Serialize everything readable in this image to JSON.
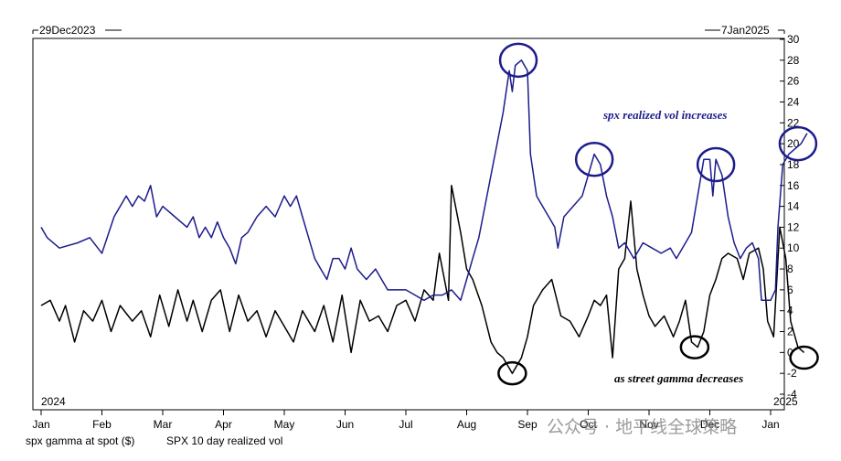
{
  "chart_data": {
    "type": "line",
    "date_range_start": "29Dec2023",
    "date_range_end": "7Jan2025",
    "year_start_label": "2024",
    "year_end_label": "2025",
    "x_month_labels": [
      "Jan",
      "Feb",
      "Mar",
      "Apr",
      "May",
      "Jun",
      "Jul",
      "Aug",
      "Sep",
      "Oct",
      "Nov",
      "Dec",
      "Jan"
    ],
    "y_ticks": [
      -4,
      -2,
      0,
      2,
      4,
      6,
      8,
      10,
      12,
      14,
      16,
      18,
      20,
      22,
      24,
      26,
      28,
      30
    ],
    "ylim": [
      -4,
      30
    ],
    "colors": {
      "gamma": "#000000",
      "vol": "#1c1c8c"
    },
    "series": [
      {
        "name": "spx gamma at spot ($)",
        "color": "#000000",
        "points": [
          [
            0.0,
            4.5
          ],
          [
            0.15,
            5
          ],
          [
            0.3,
            3
          ],
          [
            0.4,
            4.5
          ],
          [
            0.55,
            1
          ],
          [
            0.7,
            4
          ],
          [
            0.85,
            3
          ],
          [
            1.0,
            5
          ],
          [
            1.15,
            2
          ],
          [
            1.3,
            4.5
          ],
          [
            1.5,
            3
          ],
          [
            1.65,
            4
          ],
          [
            1.8,
            1.5
          ],
          [
            1.95,
            5.5
          ],
          [
            2.1,
            2.5
          ],
          [
            2.25,
            6
          ],
          [
            2.4,
            3
          ],
          [
            2.5,
            5
          ],
          [
            2.65,
            2
          ],
          [
            2.8,
            5
          ],
          [
            2.95,
            6
          ],
          [
            3.1,
            2
          ],
          [
            3.25,
            5.5
          ],
          [
            3.4,
            3
          ],
          [
            3.55,
            4
          ],
          [
            3.7,
            1.5
          ],
          [
            3.85,
            4
          ],
          [
            4.0,
            2.5
          ],
          [
            4.15,
            1
          ],
          [
            4.3,
            4
          ],
          [
            4.5,
            2
          ],
          [
            4.65,
            4.5
          ],
          [
            4.8,
            1
          ],
          [
            4.95,
            5.5
          ],
          [
            5.1,
            0
          ],
          [
            5.25,
            5
          ],
          [
            5.4,
            3
          ],
          [
            5.55,
            3.5
          ],
          [
            5.7,
            2
          ],
          [
            5.85,
            4.5
          ],
          [
            6.0,
            5
          ],
          [
            6.15,
            3
          ],
          [
            6.3,
            6
          ],
          [
            6.45,
            5
          ],
          [
            6.55,
            9.5
          ],
          [
            6.7,
            5
          ],
          [
            6.75,
            16
          ],
          [
            6.9,
            11.5
          ],
          [
            7.0,
            8
          ],
          [
            7.1,
            7
          ],
          [
            7.25,
            4.5
          ],
          [
            7.4,
            1
          ],
          [
            7.5,
            0
          ],
          [
            7.6,
            -0.5
          ],
          [
            7.75,
            -2
          ],
          [
            7.9,
            -0.5
          ],
          [
            8.0,
            1.5
          ],
          [
            8.1,
            4.5
          ],
          [
            8.25,
            6
          ],
          [
            8.4,
            7
          ],
          [
            8.55,
            3.5
          ],
          [
            8.7,
            3
          ],
          [
            8.85,
            1.5
          ],
          [
            9.0,
            3.5
          ],
          [
            9.1,
            5
          ],
          [
            9.2,
            4.5
          ],
          [
            9.3,
            5.5
          ],
          [
            9.4,
            -0.5
          ],
          [
            9.5,
            8
          ],
          [
            9.6,
            9
          ],
          [
            9.7,
            14.5
          ],
          [
            9.8,
            8
          ],
          [
            9.9,
            5.5
          ],
          [
            10.0,
            3.5
          ],
          [
            10.1,
            2.5
          ],
          [
            10.25,
            3.5
          ],
          [
            10.4,
            1.5
          ],
          [
            10.5,
            3
          ],
          [
            10.6,
            5
          ],
          [
            10.7,
            1
          ],
          [
            10.8,
            0.5
          ],
          [
            10.9,
            2
          ],
          [
            11.0,
            5.5
          ],
          [
            11.1,
            7
          ],
          [
            11.2,
            9
          ],
          [
            11.3,
            9.5
          ],
          [
            11.45,
            9
          ],
          [
            11.55,
            7
          ],
          [
            11.65,
            9.5
          ],
          [
            11.8,
            10
          ],
          [
            11.88,
            8
          ],
          [
            11.95,
            3
          ],
          [
            12.05,
            1.5
          ],
          [
            12.15,
            12
          ],
          [
            12.25,
            9
          ],
          [
            12.33,
            3
          ],
          [
            12.45,
            0.5
          ],
          [
            12.55,
            0
          ]
        ]
      },
      {
        "name": "SPX 10 day realized vol",
        "color": "#1c1c8c",
        "points": [
          [
            0.0,
            12
          ],
          [
            0.1,
            11
          ],
          [
            0.3,
            10
          ],
          [
            0.6,
            10.5
          ],
          [
            0.8,
            11
          ],
          [
            1.0,
            9.5
          ],
          [
            1.2,
            13
          ],
          [
            1.4,
            15
          ],
          [
            1.5,
            14
          ],
          [
            1.6,
            15
          ],
          [
            1.7,
            14.5
          ],
          [
            1.8,
            16
          ],
          [
            1.9,
            13
          ],
          [
            2.0,
            14
          ],
          [
            2.2,
            13
          ],
          [
            2.4,
            12
          ],
          [
            2.5,
            13
          ],
          [
            2.6,
            11
          ],
          [
            2.7,
            12
          ],
          [
            2.8,
            11
          ],
          [
            2.9,
            12.5
          ],
          [
            3.0,
            11
          ],
          [
            3.1,
            10
          ],
          [
            3.2,
            8.5
          ],
          [
            3.3,
            11
          ],
          [
            3.4,
            11.5
          ],
          [
            3.55,
            13
          ],
          [
            3.7,
            14
          ],
          [
            3.85,
            13
          ],
          [
            4.0,
            15
          ],
          [
            4.1,
            14
          ],
          [
            4.2,
            15
          ],
          [
            4.3,
            13
          ],
          [
            4.4,
            11
          ],
          [
            4.5,
            9
          ],
          [
            4.6,
            8
          ],
          [
            4.7,
            7
          ],
          [
            4.8,
            9
          ],
          [
            4.9,
            9
          ],
          [
            5.0,
            8
          ],
          [
            5.1,
            10
          ],
          [
            5.2,
            8
          ],
          [
            5.35,
            7
          ],
          [
            5.5,
            8
          ],
          [
            5.7,
            6
          ],
          [
            5.85,
            6
          ],
          [
            6.0,
            6
          ],
          [
            6.15,
            5.5
          ],
          [
            6.3,
            5
          ],
          [
            6.45,
            5.5
          ],
          [
            6.6,
            5.5
          ],
          [
            6.75,
            6
          ],
          [
            6.9,
            5
          ],
          [
            7.0,
            7
          ],
          [
            7.1,
            9
          ],
          [
            7.2,
            11
          ],
          [
            7.3,
            14
          ],
          [
            7.4,
            17
          ],
          [
            7.5,
            20
          ],
          [
            7.6,
            23
          ],
          [
            7.7,
            27
          ],
          [
            7.75,
            25
          ],
          [
            7.8,
            27.5
          ],
          [
            7.9,
            28
          ],
          [
            8.0,
            27
          ],
          [
            8.05,
            19
          ],
          [
            8.15,
            15
          ],
          [
            8.25,
            14
          ],
          [
            8.35,
            13
          ],
          [
            8.45,
            12
          ],
          [
            8.5,
            10
          ],
          [
            8.6,
            13
          ],
          [
            8.75,
            14
          ],
          [
            8.9,
            15
          ],
          [
            9.0,
            17
          ],
          [
            9.1,
            19
          ],
          [
            9.2,
            18
          ],
          [
            9.3,
            15
          ],
          [
            9.4,
            13
          ],
          [
            9.5,
            10
          ],
          [
            9.6,
            10.5
          ],
          [
            9.75,
            9
          ],
          [
            9.9,
            10.5
          ],
          [
            10.05,
            10
          ],
          [
            10.2,
            9.5
          ],
          [
            10.35,
            10
          ],
          [
            10.45,
            9
          ],
          [
            10.55,
            10
          ],
          [
            10.7,
            11.5
          ],
          [
            10.8,
            15
          ],
          [
            10.9,
            18.5
          ],
          [
            11.0,
            18.5
          ],
          [
            11.05,
            15
          ],
          [
            11.1,
            18.5
          ],
          [
            11.2,
            17
          ],
          [
            11.3,
            13
          ],
          [
            11.4,
            10.5
          ],
          [
            11.5,
            9
          ],
          [
            11.6,
            10
          ],
          [
            11.7,
            10.5
          ],
          [
            11.8,
            9
          ],
          [
            11.85,
            5
          ],
          [
            12.0,
            5
          ],
          [
            12.08,
            6
          ],
          [
            12.12,
            12
          ],
          [
            12.2,
            18
          ],
          [
            12.3,
            19
          ],
          [
            12.4,
            19.5
          ],
          [
            12.5,
            20
          ],
          [
            12.6,
            21
          ]
        ]
      }
    ],
    "annotations": {
      "vol": "spx realized vol increases",
      "gamma": "as street gamma decreases"
    },
    "legend": {
      "gamma": "spx gamma at spot ($)",
      "vol": "SPX 10 day realized vol"
    },
    "highlight_circles": [
      {
        "series": "vol",
        "month": 7.85,
        "value": 28
      },
      {
        "series": "vol",
        "month": 9.1,
        "value": 18.5
      },
      {
        "series": "vol",
        "month": 11.1,
        "value": 18
      },
      {
        "series": "vol",
        "month": 12.45,
        "value": 20
      },
      {
        "series": "gamma",
        "month": 7.75,
        "value": -2
      },
      {
        "series": "gamma",
        "month": 10.75,
        "value": 0.5
      },
      {
        "series": "gamma",
        "month": 12.55,
        "value": -0.5
      }
    ]
  },
  "watermark": "公众号 · 地平线全球策略"
}
